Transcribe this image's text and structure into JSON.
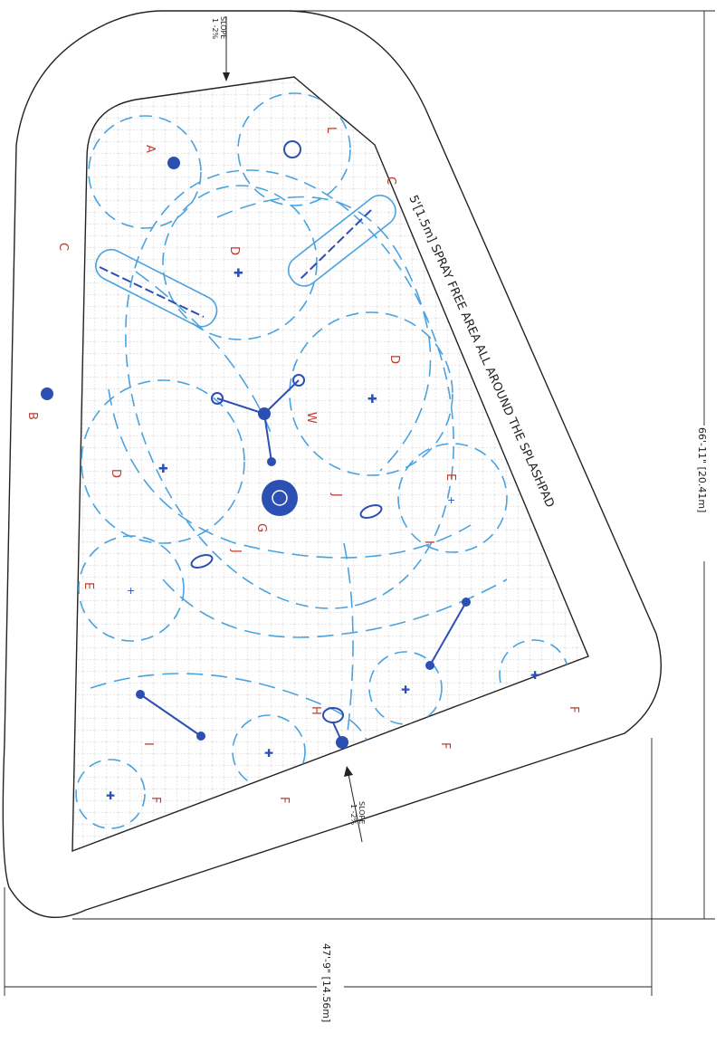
{
  "annotations": {
    "spray_free": "5'[1.5m] SPRAY FREE AREA ALL AROUND THE SPLASHPAD",
    "slope_top": "SLOPE",
    "slope_top_value": "1 -2%",
    "slope_bottom": "SLOPE",
    "slope_bottom_value": "1 -2%",
    "dimension_long": "66'-11\" [20.41m]",
    "dimension_short": "47'-9\" [14.56m]"
  },
  "zone_labels": {
    "A": "A",
    "B": "B",
    "C1": "C",
    "C2": "C",
    "D1": "D",
    "D2": "D",
    "D3": "D",
    "E1": "E",
    "E2": "E",
    "F1": "F",
    "F2": "F",
    "F3": "F",
    "F4": "F",
    "G": "G",
    "H": "H",
    "I1": "I",
    "I2": "I",
    "J1": "J",
    "J2": "J",
    "L": "L",
    "W": "W"
  },
  "colors": {
    "outline": "#222222",
    "grid": "#b0b0b0",
    "spray": "#4aa3df",
    "feature": "#2c4fb3",
    "label": "#c0392b"
  }
}
